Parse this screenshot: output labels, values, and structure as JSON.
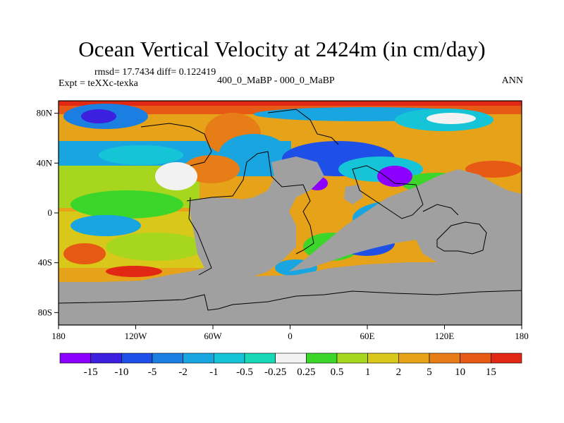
{
  "title": "Ocean Vertical Velocity at 2424m (in cm/day)",
  "stats": "rmsd= 17.7434 diff= 0.122419",
  "expt": "Expt = teXXc-texka",
  "center_label": "400_0_MaBP - 000_0_MaBP",
  "season": "ANN",
  "lat_labels": [
    {
      "text": "80N",
      "lat": 80
    },
    {
      "text": "40N",
      "lat": 40
    },
    {
      "text": "0",
      "lat": 0
    },
    {
      "text": "40S",
      "lat": -40
    },
    {
      "text": "80S",
      "lat": -80
    }
  ],
  "lon_labels": [
    {
      "text": "180",
      "lon": -180
    },
    {
      "text": "120W",
      "lon": -120
    },
    {
      "text": "60W",
      "lon": -60
    },
    {
      "text": "0",
      "lon": 0
    },
    {
      "text": "60E",
      "lon": 60
    },
    {
      "text": "120E",
      "lon": 120
    },
    {
      "text": "180",
      "lon": 180
    }
  ],
  "colorbar": {
    "labels": [
      "-15",
      "-10",
      "-5",
      "-2",
      "-1",
      "-0.5",
      "-0.25",
      "0.25",
      "0.5",
      "1",
      "2",
      "5",
      "10",
      "15"
    ],
    "colors": [
      "#8c00ff",
      "#3d1fe0",
      "#1e4fe6",
      "#1a7fe0",
      "#19a6e0",
      "#16c4d8",
      "#18d8b8",
      "#f2f2f2",
      "#3cd62a",
      "#a6d61e",
      "#d8c81a",
      "#e6a218",
      "#e67d16",
      "#e65a16",
      "#e02814"
    ]
  },
  "colors": {
    "land": "#a0a0a0",
    "coast": "#000000"
  }
}
